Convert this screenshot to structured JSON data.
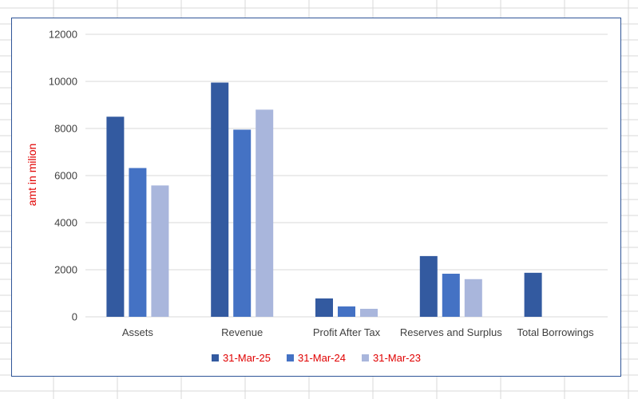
{
  "chart_data": {
    "type": "bar",
    "title": "",
    "xlabel": "",
    "ylabel": "amt in milion",
    "ylim": [
      0,
      12000
    ],
    "yticks": [
      0,
      2000,
      4000,
      6000,
      8000,
      10000,
      12000
    ],
    "grid": true,
    "legend_position": "bottom",
    "categories": [
      "Assets",
      "Revenue",
      "Profit After Tax",
      "Reserves and Surplus",
      "Total Borrowings"
    ],
    "series": [
      {
        "name": "31-Mar-25",
        "color": "#335aa0",
        "values": [
          8500,
          9950,
          780,
          2580,
          1870
        ]
      },
      {
        "name": "31-Mar-24",
        "color": "#4472c4",
        "values": [
          6320,
          7950,
          440,
          1830,
          0
        ]
      },
      {
        "name": "31-Mar-23",
        "color": "#a9b6dc",
        "values": [
          5580,
          8800,
          340,
          1600,
          0
        ]
      }
    ]
  }
}
